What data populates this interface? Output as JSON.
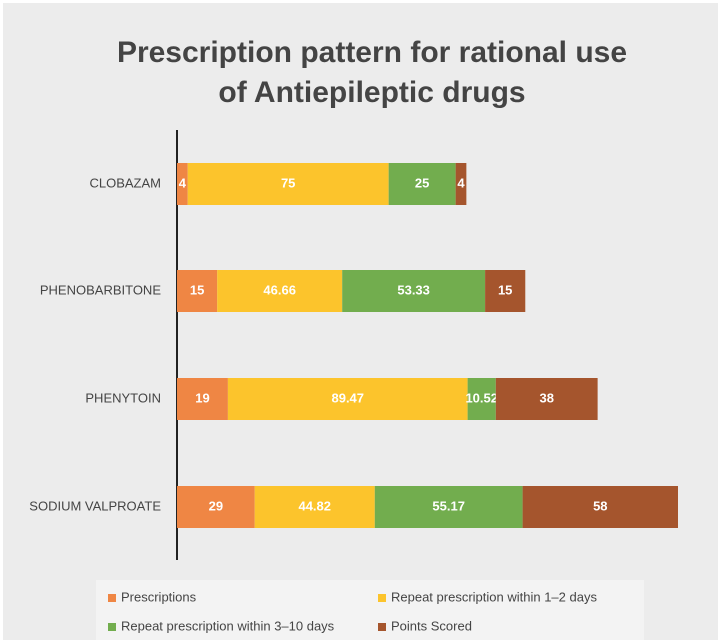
{
  "chart_data": {
    "type": "stacked-bar-horizontal",
    "title": "Prescription pattern for rational use of Antiepileptic drugs",
    "categories": [
      "CLOBAZAM",
      "PHENOBARBITONE",
      "PHENYTOIN",
      "SODIUM VALPROATE"
    ],
    "series": [
      {
        "name": "Prescriptions",
        "color": "#ef8644",
        "values": [
          4,
          15,
          19,
          29
        ]
      },
      {
        "name": "Repeat prescription within 1–2 days",
        "color": "#fcc42c",
        "values": [
          75,
          46.66,
          89.47,
          44.82
        ]
      },
      {
        "name": "Repeat prescription within 3–10 days",
        "color": "#72ad4e",
        "values": [
          25,
          53.33,
          10.52,
          55.17
        ]
      },
      {
        "name": "Points Scored",
        "color": "#a5552d",
        "values": [
          4,
          15,
          38,
          58
        ]
      }
    ],
    "legend": "bottom"
  }
}
